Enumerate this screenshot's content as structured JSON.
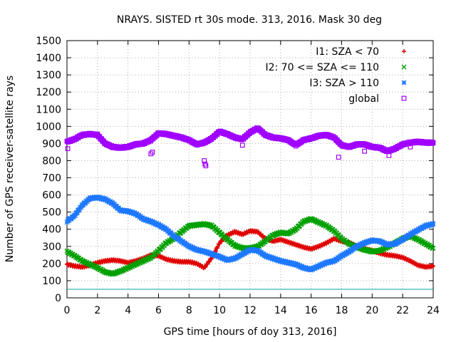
{
  "chart_data": {
    "type": "scatter",
    "title": "NRAYS. SISTED rt 30s mode. 313, 2016. Mask 30 deg",
    "xlabel": "GPS time [hours of doy 313, 2016]",
    "ylabel": "Number of GPS receiver-satellite rays",
    "xlim": [
      0,
      24
    ],
    "ylim": [
      0,
      1500
    ],
    "xticks": [
      0,
      2,
      4,
      6,
      8,
      10,
      12,
      14,
      16,
      18,
      20,
      22,
      24
    ],
    "yticks": [
      0,
      100,
      200,
      300,
      400,
      500,
      600,
      700,
      800,
      900,
      1000,
      1100,
      1200,
      1300,
      1400,
      1500
    ],
    "grid": true,
    "legend_position": "top-right",
    "reference_line": {
      "y": 50,
      "color": "#00a0a0"
    },
    "series": [
      {
        "name": "I1: SZA < 70",
        "marker": "+",
        "color": "#e00000",
        "x": [
          0,
          0.5,
          1,
          1.5,
          2,
          2.5,
          3,
          3.5,
          4,
          4.5,
          5,
          5.5,
          6,
          6.5,
          7,
          7.5,
          8,
          8.5,
          9,
          9.5,
          10,
          10.5,
          11,
          11.5,
          12,
          12.5,
          13,
          13.5,
          14,
          14.5,
          15,
          15.5,
          16,
          16.5,
          17,
          17.5,
          18,
          18.5,
          19,
          19.5,
          20,
          20.5,
          21,
          21.5,
          22,
          22.5,
          23,
          23.5,
          24
        ],
        "values": [
          195,
          185,
          180,
          190,
          205,
          215,
          220,
          215,
          205,
          215,
          230,
          250,
          245,
          225,
          215,
          210,
          210,
          200,
          175,
          235,
          320,
          365,
          385,
          370,
          390,
          385,
          345,
          330,
          340,
          325,
          310,
          295,
          285,
          300,
          320,
          345,
          330,
          320,
          300,
          285,
          275,
          260,
          250,
          245,
          235,
          215,
          190,
          180,
          185
        ]
      },
      {
        "name": "I2: 70 <= SZA <= 110",
        "marker": "x",
        "color": "#00a000",
        "x": [
          0,
          0.5,
          1,
          1.5,
          2,
          2.5,
          3,
          3.5,
          4,
          4.5,
          5,
          5.5,
          6,
          6.5,
          7,
          7.5,
          8,
          8.5,
          9,
          9.5,
          10,
          10.5,
          11,
          11.5,
          12,
          12.5,
          13,
          13.5,
          14,
          14.5,
          15,
          15.5,
          16,
          16.5,
          17,
          17.5,
          18,
          18.5,
          19,
          19.5,
          20,
          20.5,
          21,
          21.5,
          22,
          22.5,
          23,
          23.5,
          24
        ],
        "values": [
          270,
          245,
          215,
          195,
          175,
          150,
          140,
          155,
          175,
          195,
          215,
          235,
          275,
          320,
          345,
          385,
          420,
          425,
          430,
          420,
          380,
          340,
          305,
          290,
          290,
          300,
          330,
          365,
          380,
          375,
          400,
          445,
          460,
          440,
          420,
          390,
          345,
          315,
          295,
          280,
          270,
          275,
          295,
          320,
          345,
          360,
          340,
          315,
          290
        ]
      },
      {
        "name": "I3: SZA > 110",
        "marker": "*",
        "color": "#1e78ff",
        "x": [
          0,
          0.5,
          1,
          1.5,
          2,
          2.5,
          3,
          3.5,
          4,
          4.5,
          5,
          5.5,
          6,
          6.5,
          7,
          7.5,
          8,
          8.5,
          9,
          9.5,
          10,
          10.5,
          11,
          11.5,
          12,
          12.5,
          13,
          13.5,
          14,
          14.5,
          15,
          15.5,
          16,
          16.5,
          17,
          17.5,
          18,
          18.5,
          19,
          19.5,
          20,
          20.5,
          21,
          21.5,
          22,
          22.5,
          23,
          23.5,
          24
        ],
        "values": [
          445,
          480,
          540,
          580,
          585,
          575,
          550,
          510,
          505,
          490,
          460,
          445,
          425,
          400,
          360,
          330,
          300,
          280,
          270,
          255,
          240,
          220,
          230,
          255,
          280,
          275,
          245,
          230,
          215,
          205,
          195,
          175,
          165,
          185,
          205,
          215,
          245,
          270,
          300,
          320,
          335,
          330,
          310,
          315,
          340,
          370,
          395,
          420,
          430
        ]
      },
      {
        "name": "global",
        "marker": "square",
        "color": "#a000ff",
        "x": [
          0,
          0.5,
          1,
          1.5,
          2,
          2.5,
          3,
          3.5,
          4,
          4.5,
          5,
          5.5,
          6,
          6.5,
          7,
          7.5,
          8,
          8.5,
          9,
          9.5,
          10,
          10.5,
          11,
          11.5,
          12,
          12.5,
          13,
          13.5,
          14,
          14.5,
          15,
          15.5,
          16,
          16.5,
          17,
          17.5,
          18,
          18.5,
          19,
          19.5,
          20,
          20.5,
          21,
          21.5,
          22,
          22.5,
          23,
          23.5,
          24
        ],
        "values": [
          910,
          925,
          950,
          955,
          950,
          900,
          880,
          875,
          880,
          895,
          900,
          920,
          960,
          955,
          945,
          935,
          920,
          895,
          905,
          930,
          970,
          955,
          935,
          925,
          965,
          990,
          950,
          935,
          930,
          920,
          890,
          920,
          930,
          945,
          950,
          935,
          890,
          880,
          895,
          895,
          880,
          875,
          855,
          870,
          895,
          905,
          910,
          905,
          905
        ],
        "outliers_x": [
          0.05,
          5.5,
          5.6,
          9.0,
          9.05,
          9.1,
          11.5,
          17.8,
          19.5,
          21.1,
          22.5
        ],
        "outliers": [
          870,
          840,
          850,
          800,
          780,
          770,
          890,
          820,
          855,
          830,
          880
        ]
      }
    ]
  }
}
